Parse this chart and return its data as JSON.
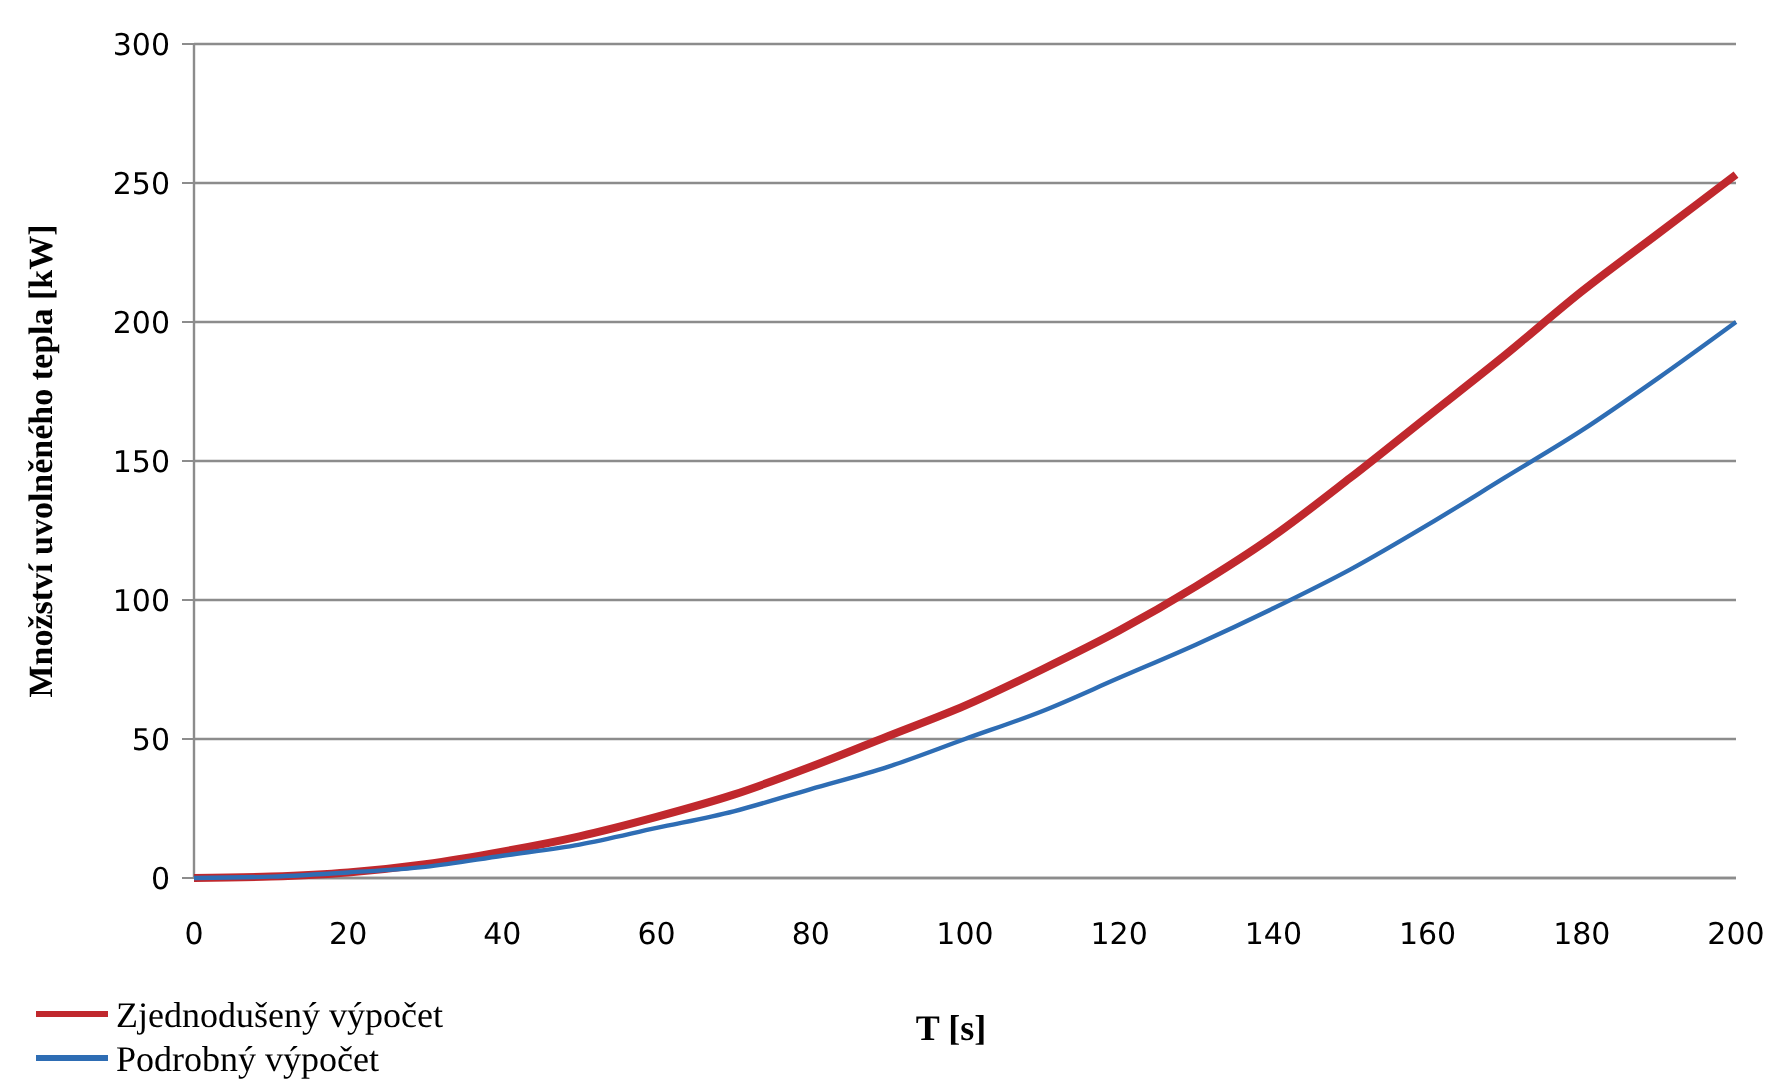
{
  "chart_data": {
    "type": "line",
    "xlabel": "T [s]",
    "ylabel": "Množství uvolněného tepla [kW]",
    "x": [
      0,
      10,
      20,
      30,
      40,
      50,
      60,
      70,
      80,
      90,
      100,
      110,
      120,
      130,
      140,
      150,
      160,
      170,
      180,
      190,
      200
    ],
    "xlim": [
      0,
      200
    ],
    "xticks": [
      0,
      20,
      40,
      60,
      80,
      100,
      120,
      140,
      160,
      180,
      200
    ],
    "ylim": [
      0,
      300
    ],
    "yticks": [
      0,
      50,
      100,
      150,
      200,
      250,
      300
    ],
    "grid": "y",
    "legend": "bottom left",
    "marker": "none",
    "line_style": "solid",
    "series": [
      {
        "name": "Zjednodušený výpočet",
        "color": "#c0282d",
        "values": [
          0,
          0.5,
          2,
          5,
          9.5,
          15,
          22,
          30,
          40,
          51,
          62,
          75,
          89,
          105,
          123,
          144,
          166,
          188,
          211,
          232,
          253
        ]
      },
      {
        "name": "Podrobný výpočet",
        "color": "#2e6db4",
        "values": [
          0,
          0.5,
          2,
          4,
          8,
          12,
          18,
          24,
          32,
          40,
          50,
          60,
          72,
          84,
          97,
          111,
          127,
          144,
          161,
          180,
          200
        ]
      }
    ]
  }
}
